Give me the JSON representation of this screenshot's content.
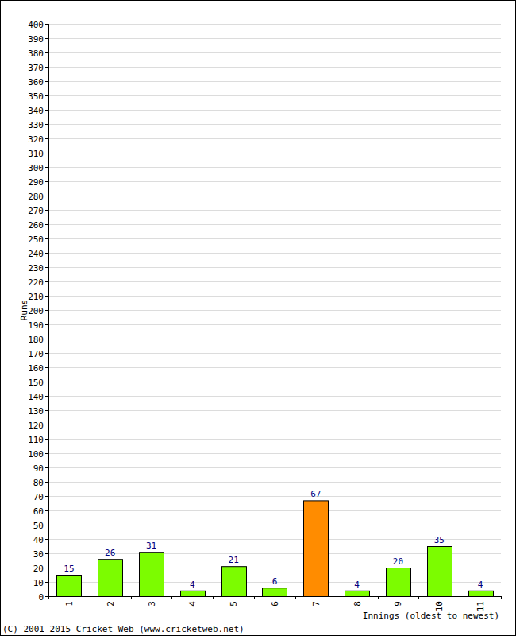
{
  "chart_data": {
    "type": "bar",
    "y_label": "Runs",
    "x_label": "Innings (oldest to newest)",
    "annotation": "(C) 2001-2015 Cricket Web (www.cricketweb.net)",
    "categories": [
      "1",
      "2",
      "3",
      "4",
      "5",
      "6",
      "7",
      "8",
      "9",
      "10",
      "11"
    ],
    "values": [
      15,
      26,
      31,
      4,
      21,
      6,
      67,
      4,
      20,
      35,
      4
    ],
    "colors": [
      "#7cfc00",
      "#7cfc00",
      "#7cfc00",
      "#7cfc00",
      "#7cfc00",
      "#7cfc00",
      "#ff8c00",
      "#7cfc00",
      "#7cfc00",
      "#7cfc00",
      "#7cfc00"
    ],
    "ylim": [
      0,
      400
    ],
    "yticks": [
      0,
      10,
      20,
      30,
      40,
      50,
      60,
      70,
      80,
      90,
      100,
      110,
      120,
      130,
      140,
      150,
      160,
      170,
      180,
      190,
      200,
      210,
      220,
      230,
      240,
      250,
      260,
      270,
      280,
      290,
      300,
      310,
      320,
      330,
      340,
      350,
      360,
      370,
      380,
      390,
      400
    ],
    "grid": true,
    "data_labels": true
  }
}
